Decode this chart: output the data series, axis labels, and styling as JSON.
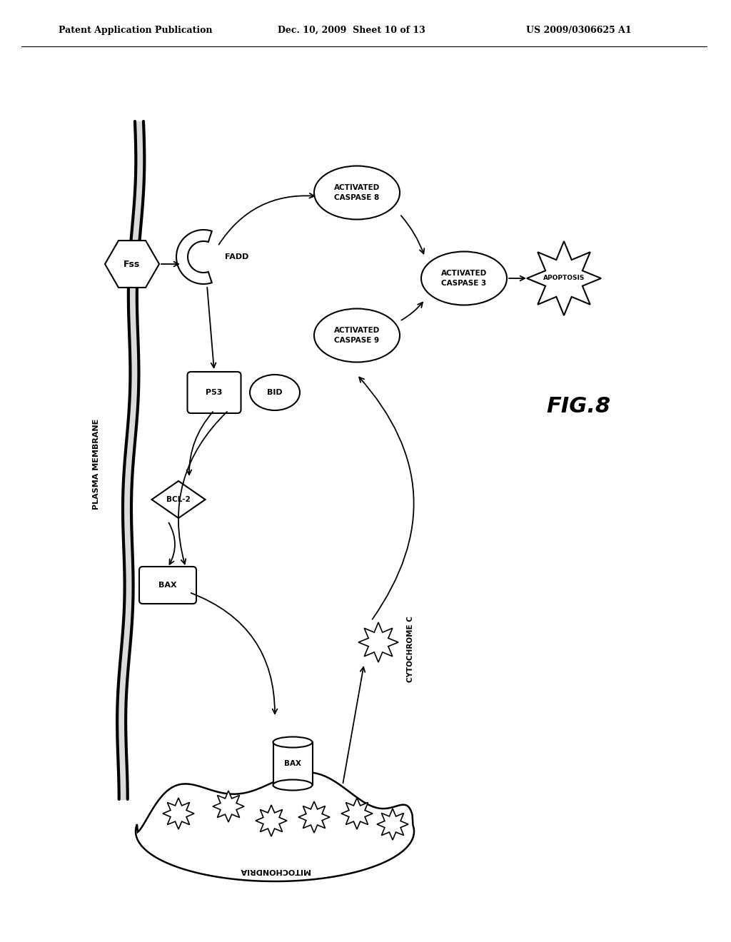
{
  "title": "FIG.8",
  "header_left": "Patent Application Publication",
  "header_mid": "Dec. 10, 2009  Sheet 10 of 13",
  "header_right": "US 2009/0306625 A1",
  "bg_color": "#ffffff",
  "line_color": "#000000",
  "fig_width": 10.24,
  "fig_height": 13.2
}
